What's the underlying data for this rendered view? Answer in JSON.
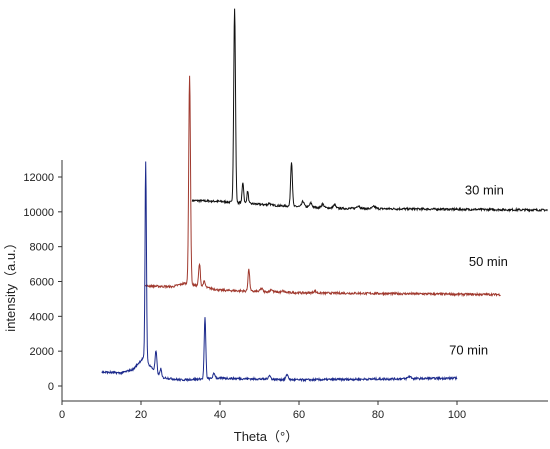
{
  "chart_data": {
    "type": "line",
    "title": "",
    "xlabel": "Theta（°）",
    "ylabel": "intensity（a.u.）",
    "xlim": [
      0,
      110
    ],
    "ylim": [
      -1000,
      13000
    ],
    "x_ticks": [
      0,
      20,
      40,
      60,
      80,
      100
    ],
    "y_ticks": [
      0,
      2000,
      4000,
      6000,
      8000,
      10000,
      12000
    ],
    "grid": false,
    "legend": "none",
    "series": [
      {
        "name": "30 min",
        "color": "#111111",
        "x_range": [
          33,
          124
        ],
        "baseline": [
          [
            33,
            10650
          ],
          [
            40,
            10600
          ],
          [
            55,
            10350
          ],
          [
            70,
            10200
          ],
          [
            124,
            10100
          ]
        ],
        "peaks": [
          [
            43.7,
            21700,
            0.22
          ],
          [
            45.8,
            11700,
            0.2
          ],
          [
            47.0,
            11200,
            0.2
          ],
          [
            52.5,
            10500,
            0.25
          ],
          [
            58.1,
            12900,
            0.22
          ],
          [
            61.0,
            10600,
            0.3
          ],
          [
            63.0,
            10500,
            0.3
          ],
          [
            66.0,
            10450,
            0.3
          ],
          [
            69.0,
            10400,
            0.3
          ],
          [
            75.0,
            10350,
            0.4
          ],
          [
            79.0,
            10300,
            0.4
          ]
        ]
      },
      {
        "name": "50 min",
        "color": "#a0392e",
        "x_range": [
          21,
          111
        ],
        "baseline": [
          [
            21,
            5750
          ],
          [
            28,
            5700
          ],
          [
            31,
            5900
          ],
          [
            40,
            5500
          ],
          [
            60,
            5350
          ],
          [
            111,
            5250
          ]
        ],
        "peaks": [
          [
            32.3,
            17800,
            0.22
          ],
          [
            34.8,
            7000,
            0.22
          ],
          [
            36.0,
            6000,
            0.25
          ],
          [
            47.3,
            6700,
            0.22
          ],
          [
            50.5,
            5600,
            0.3
          ],
          [
            53.0,
            5550,
            0.3
          ],
          [
            56.0,
            5450,
            0.3
          ],
          [
            64.0,
            5450,
            0.35
          ]
        ]
      },
      {
        "name": "70 min",
        "color": "#1c2a8c",
        "x_range": [
          10,
          100
        ],
        "baseline": [
          [
            10,
            800
          ],
          [
            15,
            750
          ],
          [
            18,
            950
          ],
          [
            20.5,
            1600
          ],
          [
            25,
            500
          ],
          [
            30,
            350
          ],
          [
            40,
            450
          ],
          [
            60,
            350
          ],
          [
            100,
            450
          ]
        ],
        "peaks": [
          [
            21.2,
            12900,
            0.18
          ],
          [
            23.8,
            2000,
            0.22
          ],
          [
            25.0,
            1000,
            0.2
          ],
          [
            36.2,
            3900,
            0.2
          ],
          [
            38.5,
            700,
            0.3
          ],
          [
            52.5,
            600,
            0.3
          ],
          [
            57.0,
            650,
            0.3
          ],
          [
            88.0,
            550,
            0.4
          ]
        ]
      }
    ],
    "annotations": [
      {
        "text": "30 min",
        "x": 102,
        "y": 11000
      },
      {
        "text": "50 min",
        "x": 103,
        "y": 6900
      },
      {
        "text": "70 min",
        "x": 98,
        "y": 1800
      }
    ]
  }
}
